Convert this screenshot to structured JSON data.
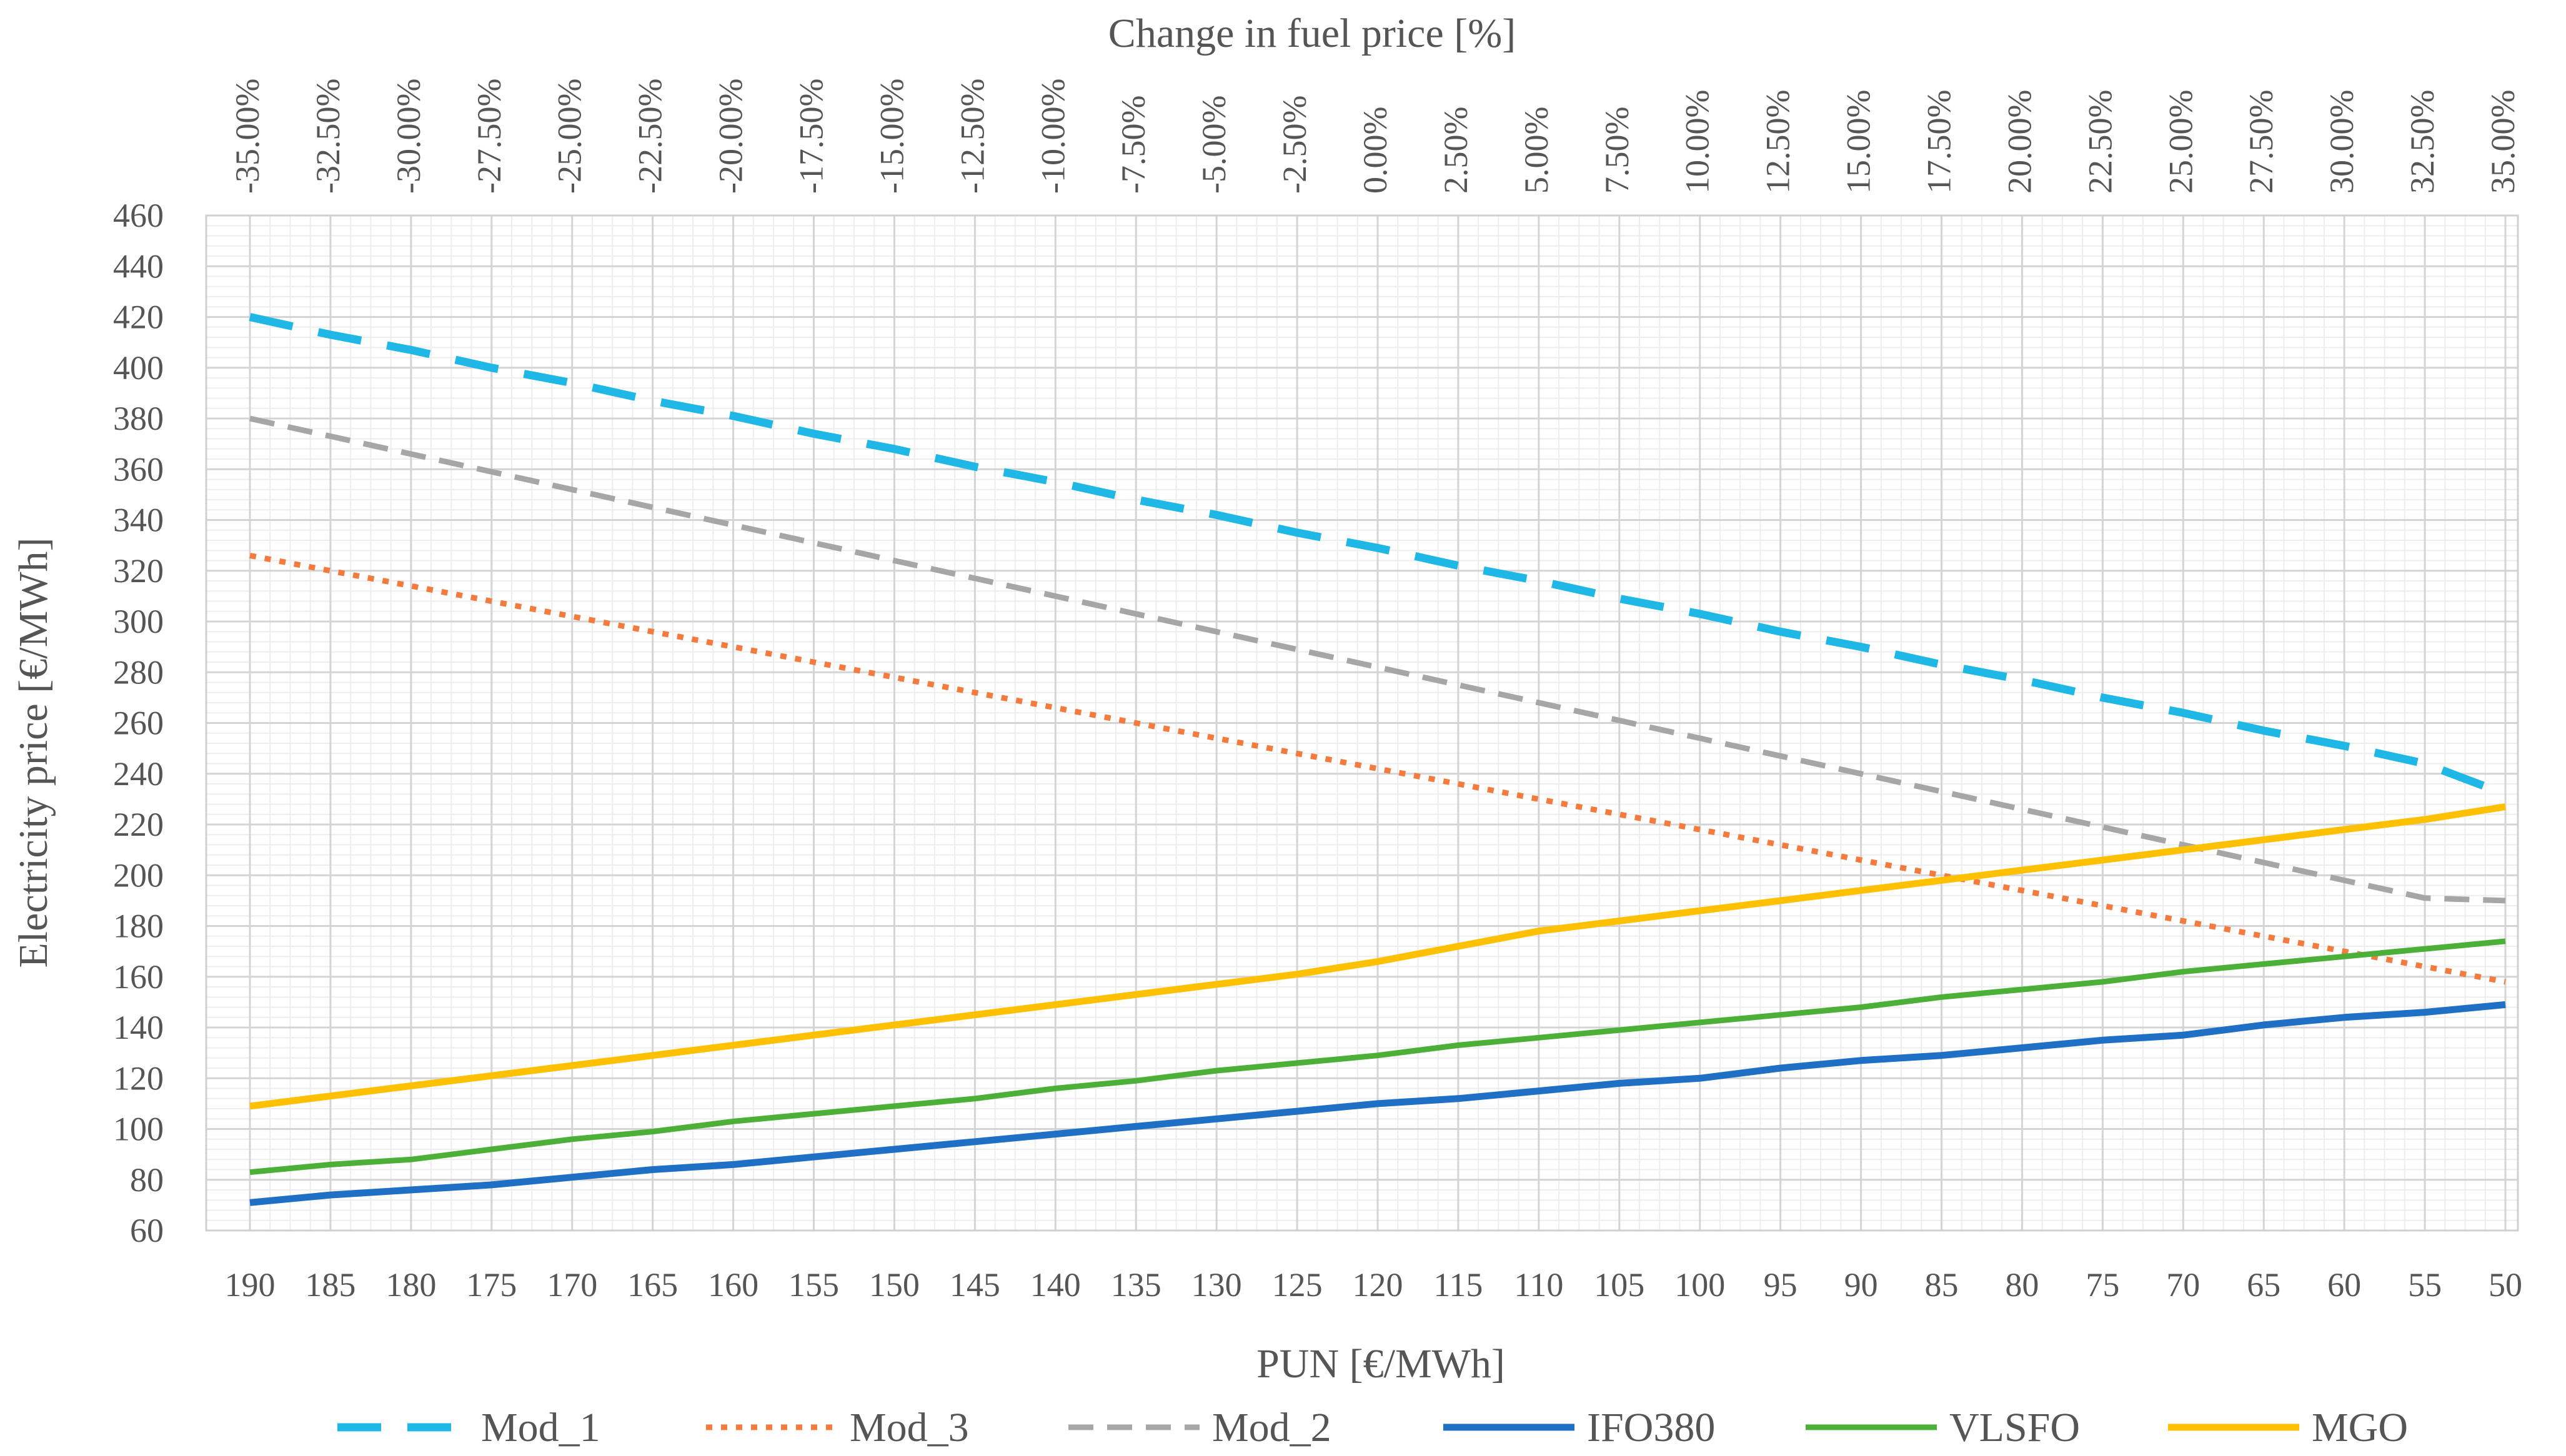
{
  "chart_data": {
    "type": "line",
    "title": "",
    "top_axis_title": "Change in fuel price [%]",
    "xlabel": "PUN [€/MWh]",
    "ylabel": "Electricity price [€/MWh]",
    "ylim": [
      60,
      460
    ],
    "y_ticks": [
      60,
      80,
      100,
      120,
      140,
      160,
      180,
      200,
      220,
      240,
      260,
      280,
      300,
      320,
      340,
      360,
      380,
      400,
      420,
      440,
      460
    ],
    "categories": [
      "190",
      "185",
      "180",
      "175",
      "170",
      "165",
      "160",
      "155",
      "150",
      "145",
      "140",
      "135",
      "130",
      "125",
      "120",
      "115",
      "110",
      "105",
      "100",
      "95",
      "90",
      "85",
      "80",
      "75",
      "70",
      "65",
      "60",
      "55",
      "50"
    ],
    "top_categories": [
      "-35.00%",
      "-32.50%",
      "-30.00%",
      "-27.50%",
      "-25.00%",
      "-22.50%",
      "-20.00%",
      "-17.50%",
      "-15.00%",
      "-12.50%",
      "-10.00%",
      "-7.50%",
      "-5.00%",
      "-2.50%",
      "0.00%",
      "2.50%",
      "5.00%",
      "7.50%",
      "10.00%",
      "12.50%",
      "15.00%",
      "17.50%",
      "20.00%",
      "22.50%",
      "25.00%",
      "27.50%",
      "30.00%",
      "32.50%",
      "35.00%"
    ],
    "grid": true,
    "legend_position": "bottom",
    "series": [
      {
        "name": "Mod_1",
        "color": "#1FB7E6",
        "style": "dashed-heavy",
        "values": [
          420,
          413,
          407,
          400,
          394,
          387,
          381,
          374,
          368,
          361,
          355,
          348,
          342,
          335,
          329,
          322,
          316,
          309,
          303,
          296,
          290,
          283,
          277,
          270,
          264,
          257,
          251,
          244,
          232
        ]
      },
      {
        "name": "Mod_3",
        "color": "#F47A3D",
        "style": "dotted",
        "values": [
          326,
          320,
          314,
          308,
          302,
          296,
          290,
          284,
          278,
          272,
          266,
          260,
          254,
          248,
          242,
          236,
          230,
          224,
          218,
          212,
          206,
          200,
          194,
          188,
          182,
          176,
          170,
          164,
          158
        ]
      },
      {
        "name": "Mod_2",
        "color": "#A6A6A6",
        "style": "dashed",
        "values": [
          380,
          373,
          366,
          359,
          352,
          345,
          338,
          331,
          324,
          317,
          310,
          303,
          296,
          289,
          282,
          275,
          268,
          261,
          254,
          247,
          240,
          233,
          226,
          219,
          212,
          205,
          198,
          191,
          190
        ]
      },
      {
        "name": "IFO380",
        "color": "#1F6FC5",
        "style": "solid-heavy",
        "values": [
          71,
          74,
          76,
          78,
          81,
          84,
          86,
          89,
          92,
          95,
          98,
          101,
          104,
          107,
          110,
          112,
          115,
          118,
          120,
          124,
          127,
          129,
          132,
          135,
          137,
          141,
          144,
          146,
          149
        ]
      },
      {
        "name": "VLSFO",
        "color": "#4CAF38",
        "style": "solid",
        "values": [
          83,
          86,
          88,
          92,
          96,
          99,
          103,
          106,
          109,
          112,
          116,
          119,
          123,
          126,
          129,
          133,
          136,
          139,
          142,
          145,
          148,
          152,
          155,
          158,
          162,
          165,
          168,
          171,
          174
        ]
      },
      {
        "name": "MGO",
        "color": "#FFC000",
        "style": "solid-heavy",
        "values": [
          109,
          113,
          117,
          121,
          125,
          129,
          133,
          137,
          141,
          145,
          149,
          153,
          157,
          161,
          166,
          172,
          178,
          182,
          186,
          190,
          194,
          198,
          202,
          206,
          210,
          214,
          218,
          222,
          227
        ]
      }
    ]
  }
}
